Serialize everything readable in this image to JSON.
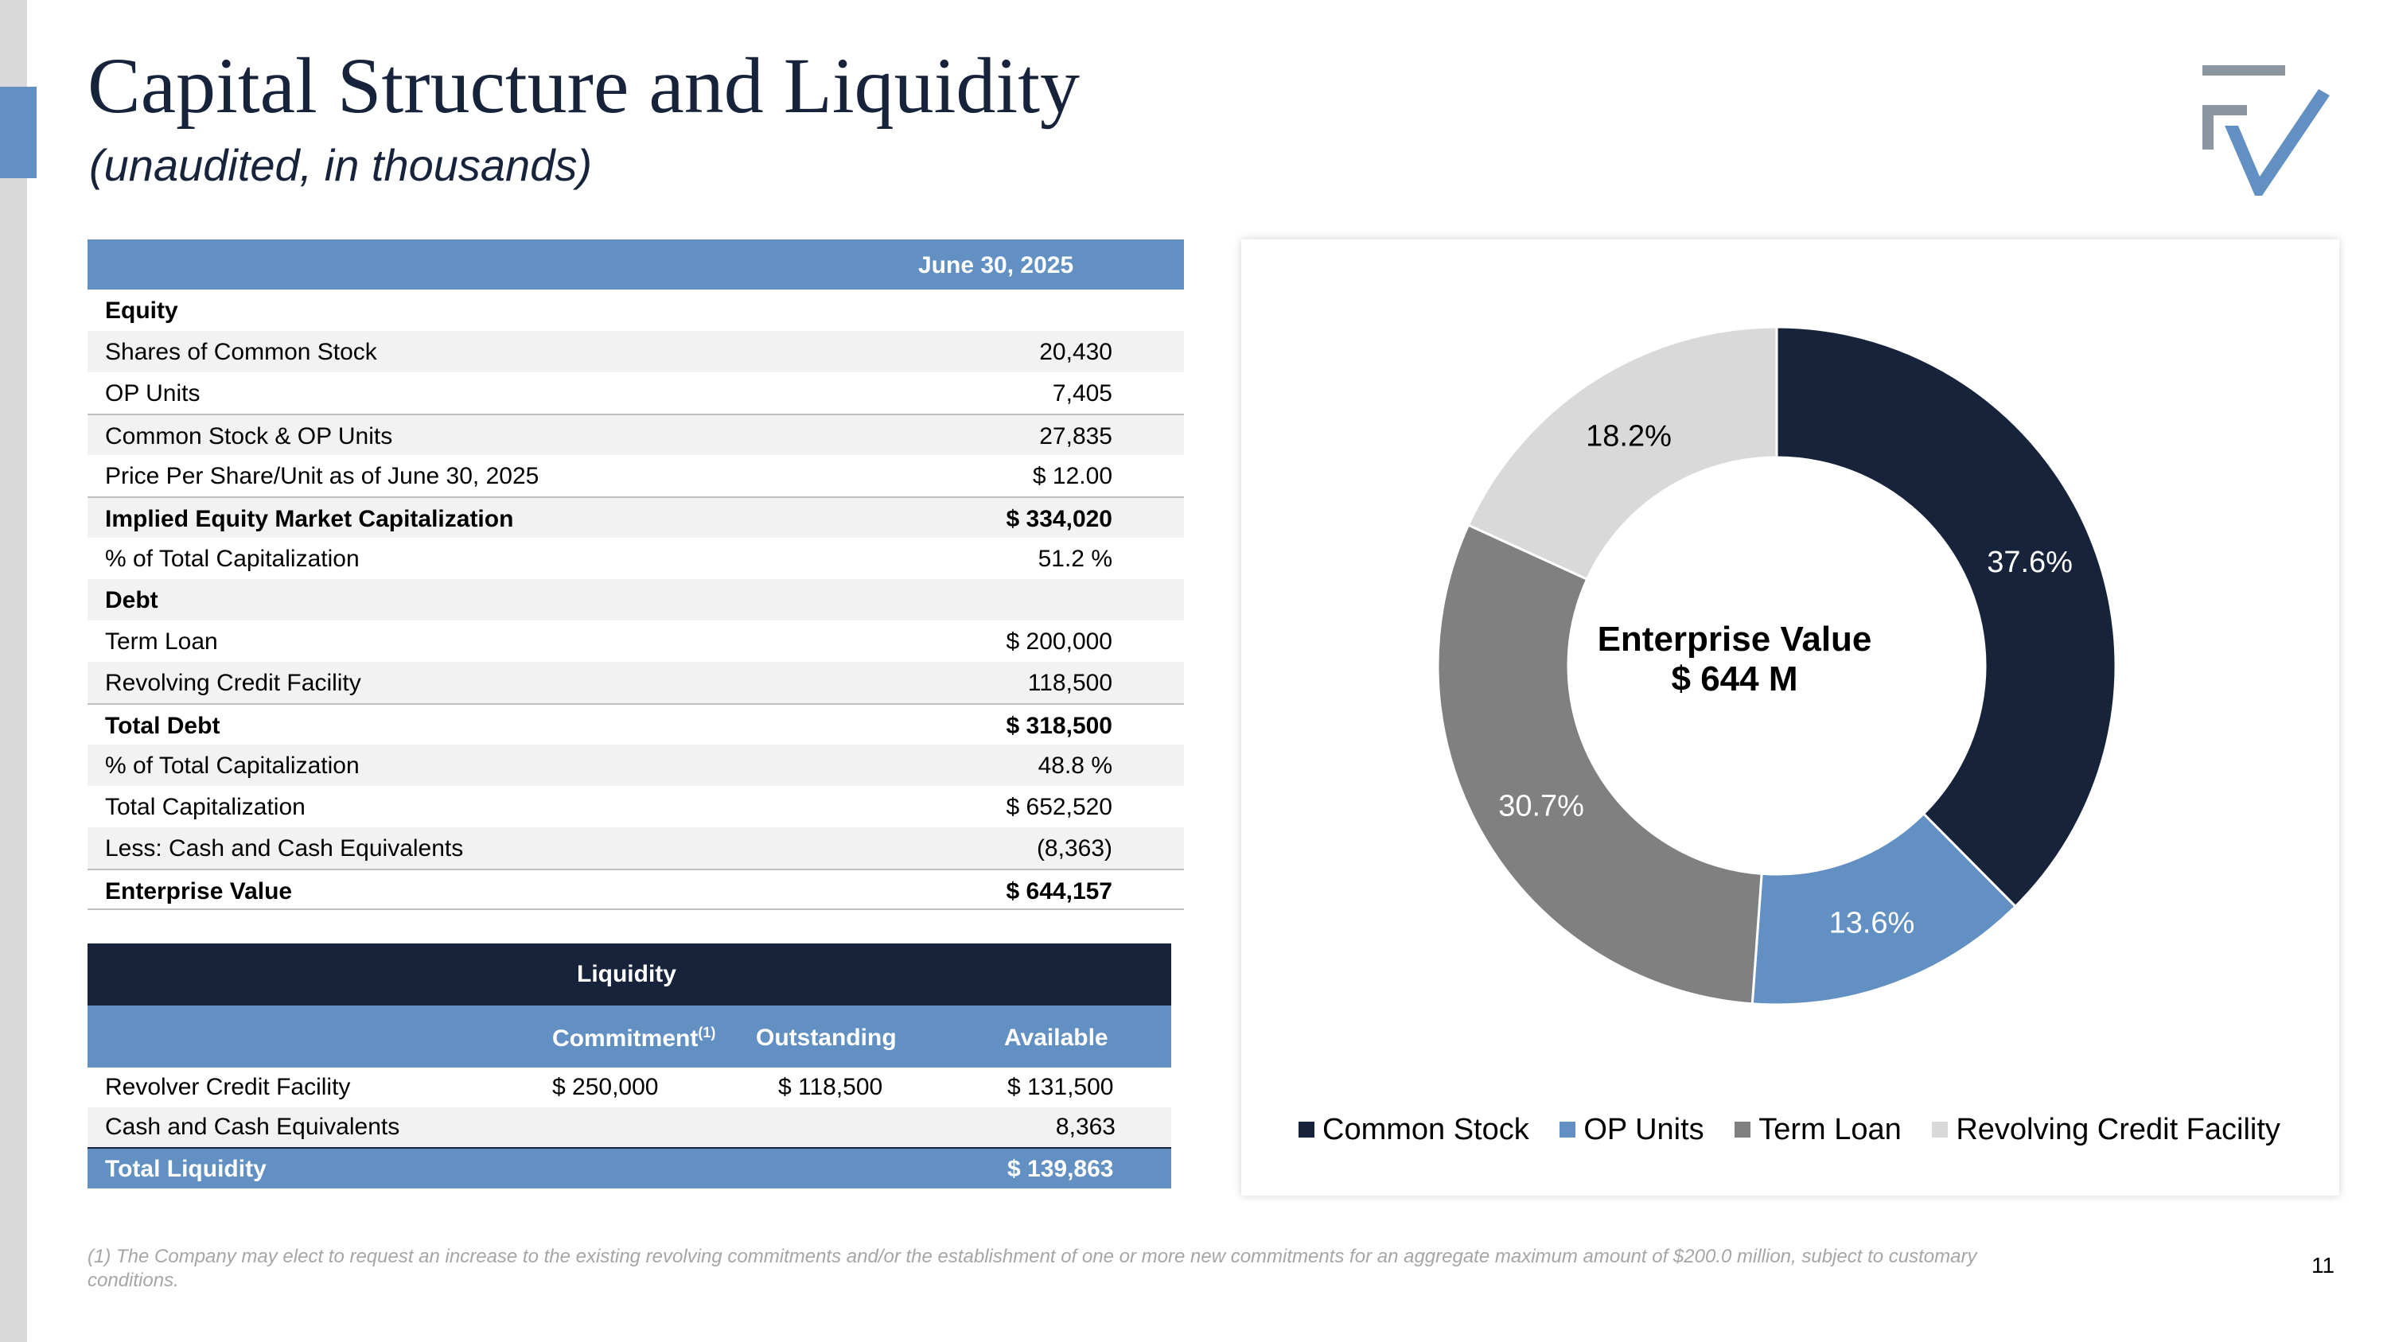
{
  "header": {
    "title": "Capital Structure and Liquidity",
    "subtitle": "(unaudited, in thousands)"
  },
  "colors": {
    "navy": "#17233a",
    "blue": "#6390c2",
    "gray_dark": "#808080",
    "gray_light": "#d9d9d9"
  },
  "capitalization": {
    "column_header": "June 30, 2025",
    "rows": [
      {
        "label": "Equity",
        "value": ""
      },
      {
        "label": "Shares of Common Stock",
        "value": "20,430"
      },
      {
        "label": "OP Units",
        "value": "7,405"
      },
      {
        "label": "Common Stock & OP Units",
        "value": "27,835"
      },
      {
        "label": "Price Per Share/Unit as of June 30, 2025",
        "value": "$ 12.00"
      },
      {
        "label": "Implied Equity Market Capitalization",
        "value": "$ 334,020"
      },
      {
        "label": "% of Total Capitalization",
        "value": "51.2 %"
      },
      {
        "label": "Debt",
        "value": ""
      },
      {
        "label": "Term Loan",
        "value": "$ 200,000"
      },
      {
        "label": "Revolving Credit Facility",
        "value": "118,500"
      },
      {
        "label": "Total Debt",
        "value": "$ 318,500"
      },
      {
        "label": "% of Total Capitalization",
        "value": "48.8 %"
      },
      {
        "label": "Total Capitalization",
        "value": "$ 652,520"
      },
      {
        "label": "Less: Cash and Cash Equivalents",
        "value": "(8,363)"
      },
      {
        "label": "Enterprise Value",
        "value": "$ 644,157"
      }
    ]
  },
  "liquidity": {
    "title": "Liquidity",
    "headers": {
      "commitment": "Commitment",
      "commitment_note": "(1)",
      "outstanding": "Outstanding",
      "available": "Available"
    },
    "rows": [
      {
        "label": "Revolver Credit Facility",
        "commitment": "$ 250,000",
        "outstanding": "$ 118,500",
        "available": "$ 131,500"
      },
      {
        "label": "Cash and Cash Equivalents",
        "commitment": "",
        "outstanding": "",
        "available": "8,363"
      }
    ],
    "total": {
      "label": "Total Liquidity",
      "available": "$ 139,863"
    }
  },
  "chart_data": {
    "type": "pie",
    "donut": true,
    "center_label": [
      "Enterprise Value",
      "$ 644 M"
    ],
    "categories": [
      "Common Stock",
      "OP Units",
      "Term Loan",
      "Revolving Credit Facility"
    ],
    "values": [
      37.6,
      13.6,
      30.7,
      18.2
    ],
    "labels": [
      "37.6%",
      "13.6%",
      "30.7%",
      "18.2%"
    ],
    "colors": [
      "#17233a",
      "#6390c2",
      "#808080",
      "#d9d9d9"
    ],
    "label_colors": [
      "#ffffff",
      "#ffffff",
      "#ffffff",
      "#000000"
    ],
    "legend_position": "bottom"
  },
  "footnote": "(1) The Company may elect to request an increase to the existing revolving commitments and/or the establishment of one or more new commitments for an aggregate maximum amount of $200.0 million, subject to customary conditions.",
  "page_number": "11"
}
